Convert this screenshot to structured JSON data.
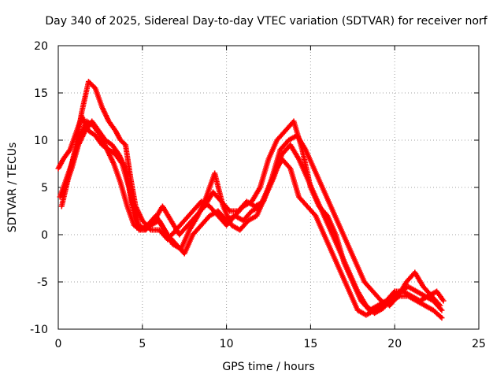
{
  "chart_data": {
    "type": "scatter",
    "title": "Day 340 of 2025, Sidereal Day-to-day VTEC variation (SDTVAR) for receiver norf",
    "xlabel": "GPS time / hours",
    "ylabel": "SDTVAR / TECUs",
    "xlim": [
      0,
      25
    ],
    "ylim": [
      -10,
      20
    ],
    "xticks": [
      "0",
      "5",
      "10",
      "15",
      "20",
      "25"
    ],
    "yticks": [
      "-10",
      "-5",
      "0",
      "5",
      "10",
      "15",
      "20"
    ],
    "grid": true,
    "marker": "+",
    "color": "#ff0000",
    "series": [
      {
        "x": [
          0,
          0.3,
          0.7,
          1.0,
          1.4,
          1.8,
          2.2,
          2.6,
          3.0,
          3.4,
          3.8,
          4.2,
          4.5,
          4.8,
          5.1,
          5.5,
          6.0,
          6.5,
          7.0,
          7.5,
          8.0,
          8.5,
          9.0,
          9.5,
          10.0,
          10.5,
          11.0,
          11.5,
          12.0,
          12.5,
          13.0,
          13.3,
          13.8,
          14.3,
          14.8,
          15.3,
          15.8,
          16.3,
          16.8,
          17.3,
          17.8,
          18.3,
          18.8,
          19.3,
          19.8,
          20.3,
          20.8,
          21.3,
          21.8,
          22.3,
          22.8
        ],
        "y": [
          7,
          8,
          9,
          10.5,
          12.5,
          11,
          10.5,
          9.5,
          9,
          8.5,
          7.5,
          5,
          2,
          0.5,
          0.5,
          1,
          1.5,
          0,
          -1,
          -2,
          0,
          1,
          2,
          2.5,
          1.5,
          2,
          1.5,
          2.5,
          3,
          5,
          7,
          8,
          7,
          4,
          3,
          2,
          0,
          -2,
          -4,
          -6,
          -8,
          -8.5,
          -8,
          -7.5,
          -7,
          -6.5,
          -6.5,
          -7,
          -7.5,
          -8,
          -8.8
        ]
      },
      {
        "x": [
          0.2,
          0.6,
          1.0,
          1.4,
          1.8,
          2.2,
          2.6,
          3.0,
          3.4,
          3.7,
          4.0,
          4.3,
          4.6,
          5.0,
          5.5,
          6.0,
          6.5,
          7.0,
          7.5,
          8.0,
          8.5,
          9.0,
          9.5,
          10.0,
          10.5,
          11.0,
          11.5,
          12.0,
          12.5,
          13.0,
          13.5,
          14.0,
          14.5,
          15.0,
          15.5,
          16.0,
          16.5,
          17.0,
          17.5,
          18.0,
          18.5,
          19.0,
          19.5,
          20.0,
          20.5,
          21.0,
          21.5,
          22.0,
          22.5,
          22.9
        ],
        "y": [
          3,
          6,
          9,
          13,
          16.2,
          15.5,
          13.5,
          12,
          11,
          10,
          9.5,
          6,
          3,
          1.5,
          0.5,
          0.5,
          -0.5,
          0.5,
          1.5,
          2.5,
          3.5,
          3,
          2,
          1,
          2,
          3,
          3.5,
          5,
          8,
          10,
          11,
          12,
          9,
          5,
          3,
          2,
          0,
          -3,
          -5,
          -7,
          -8,
          -7.5,
          -7,
          -6,
          -6,
          -6.5,
          -7,
          -6.5,
          -6,
          -7
        ]
      },
      {
        "x": [
          0.4,
          0.8,
          1.2,
          1.6,
          2.0,
          2.4,
          2.8,
          3.2,
          3.6,
          4.0,
          4.4,
          4.8,
          5.2,
          5.7,
          6.2,
          6.7,
          7.2,
          7.7,
          8.2,
          8.7,
          9.2,
          9.7,
          10.2,
          10.7,
          11.2,
          11.7,
          12.2,
          12.7,
          13.2,
          13.7,
          14.2,
          14.7,
          15.2,
          15.7,
          16.2,
          16.7,
          17.2,
          17.7,
          18.2,
          18.7,
          19.2,
          19.7,
          20.2,
          20.7,
          21.2,
          21.7,
          22.2,
          22.7
        ],
        "y": [
          5,
          7,
          9.5,
          11,
          12,
          11,
          10,
          9.5,
          8.5,
          7,
          3.5,
          1,
          0.5,
          1.5,
          3,
          1.5,
          0,
          1,
          2,
          3,
          4.5,
          3.5,
          2.5,
          2.5,
          3.5,
          3,
          3.5,
          6,
          9,
          10,
          10.5,
          9,
          7,
          5,
          3,
          1,
          -1,
          -3,
          -5,
          -6,
          -7,
          -7.5,
          -6.5,
          -5,
          -4,
          -5.5,
          -6.5,
          -7.5
        ]
      },
      {
        "x": [
          0.1,
          0.5,
          0.9,
          1.3,
          1.7,
          2.1,
          2.5,
          2.9,
          3.3,
          3.7,
          4.1,
          4.5,
          4.9,
          5.3,
          5.8,
          6.3,
          6.8,
          7.3,
          7.8,
          8.3,
          8.8,
          9.3,
          9.8,
          10.3,
          10.8,
          11.3,
          11.8,
          12.3,
          12.8,
          13.3,
          13.8,
          14.3,
          14.8,
          15.3,
          15.8,
          16.3,
          16.8,
          17.3,
          17.8,
          18.3,
          18.8,
          19.3,
          19.8,
          20.3,
          20.8,
          21.3,
          21.8,
          22.3,
          22.8
        ],
        "y": [
          4,
          6,
          8,
          10.5,
          12,
          11.5,
          10.5,
          9,
          7.5,
          5.5,
          3,
          1,
          0.5,
          1,
          2,
          0.5,
          -1,
          -1.5,
          0.5,
          2,
          4,
          6.5,
          3,
          1,
          0.5,
          1.5,
          2,
          4,
          6,
          8.5,
          9.5,
          8,
          6,
          4,
          2,
          0,
          -2,
          -4,
          -6,
          -7.5,
          -8.3,
          -7.8,
          -6.8,
          -6,
          -5.5,
          -6,
          -6.5,
          -7,
          -8
        ]
      }
    ]
  }
}
